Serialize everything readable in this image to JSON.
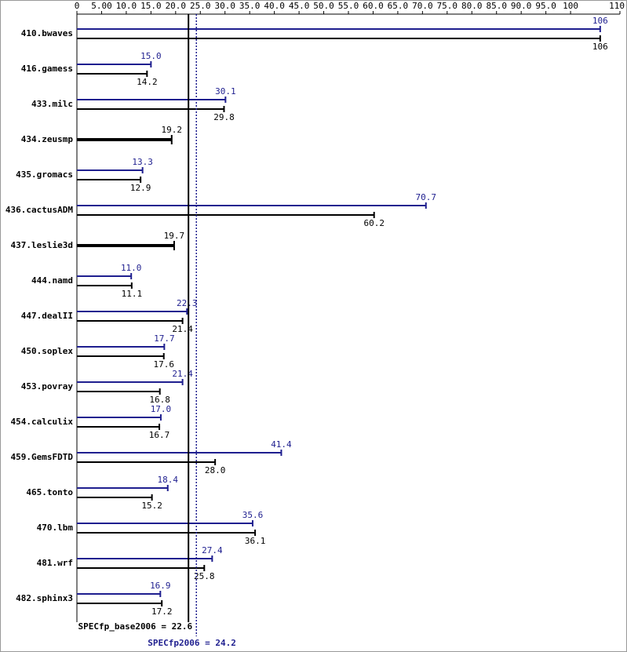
{
  "chart_data": {
    "type": "bar",
    "orientation": "horizontal",
    "categories": [
      "410.bwaves",
      "416.gamess",
      "433.milc",
      "434.zeusmp",
      "435.gromacs",
      "436.cactusADM",
      "437.leslie3d",
      "444.namd",
      "447.dealII",
      "450.soplex",
      "453.povray",
      "454.calculix",
      "459.GemsFDTD",
      "465.tonto",
      "470.lbm",
      "481.wrf",
      "482.sphinx3"
    ],
    "series": [
      {
        "color": "#1f1f8f",
        "values": [
          106,
          15.0,
          30.1,
          null,
          13.3,
          70.7,
          null,
          11.0,
          22.3,
          17.7,
          21.4,
          17.0,
          41.4,
          18.4,
          35.6,
          27.4,
          16.9
        ],
        "value_labels": [
          "106",
          "15.0",
          "30.1",
          null,
          "13.3",
          "70.7",
          null,
          "11.0",
          "22.3",
          "17.7",
          "21.4",
          "17.0",
          "41.4",
          "18.4",
          "35.6",
          "27.4",
          "16.9"
        ]
      },
      {
        "color": "#000000",
        "values": [
          106,
          14.2,
          29.8,
          19.2,
          12.9,
          60.2,
          19.7,
          11.1,
          21.4,
          17.6,
          16.8,
          16.7,
          28.0,
          15.2,
          36.1,
          25.8,
          17.2
        ],
        "value_labels": [
          "106",
          "14.2",
          "29.8",
          "19.2",
          "12.9",
          "60.2",
          "19.7",
          "11.1",
          "21.4",
          "17.6",
          "16.8",
          "16.7",
          "28.0",
          "15.2",
          "36.1",
          "25.8",
          "17.2"
        ]
      }
    ],
    "xlim": [
      0,
      110
    ],
    "xticks": [
      0,
      {
        "value": 5,
        "label": "5.00"
      },
      {
        "value": 10,
        "label": "10.0"
      },
      {
        "value": 15,
        "label": "15.0"
      },
      {
        "value": 20,
        "label": "20.0"
      },
      {
        "value": 25,
        "label": "25.0"
      },
      {
        "value": 30,
        "label": "30.0"
      },
      {
        "value": 35,
        "label": "35.0"
      },
      {
        "value": 40,
        "label": "40.0"
      },
      {
        "value": 45,
        "label": "45.0"
      },
      {
        "value": 50,
        "label": "50.0"
      },
      {
        "value": 55,
        "label": "55.0"
      },
      {
        "value": 60,
        "label": "60.0"
      },
      {
        "value": 65,
        "label": "65.0"
      },
      {
        "value": 70,
        "label": "70.0"
      },
      {
        "value": 75,
        "label": "75.0"
      },
      {
        "value": 80,
        "label": "80.0"
      },
      {
        "value": 85,
        "label": "85.0"
      },
      {
        "value": 90,
        "label": "90.0"
      },
      {
        "value": 95,
        "label": "95.0"
      },
      100,
      110
    ],
    "reference_lines": [
      {
        "label": "SPECfp_base2006 = 22.6",
        "value": 22.6,
        "color": "#000000",
        "dashed": false
      },
      {
        "label": "SPECfp2006 = 24.2",
        "value": 24.2,
        "color": "#1f1f8f",
        "dashed": true
      }
    ]
  }
}
